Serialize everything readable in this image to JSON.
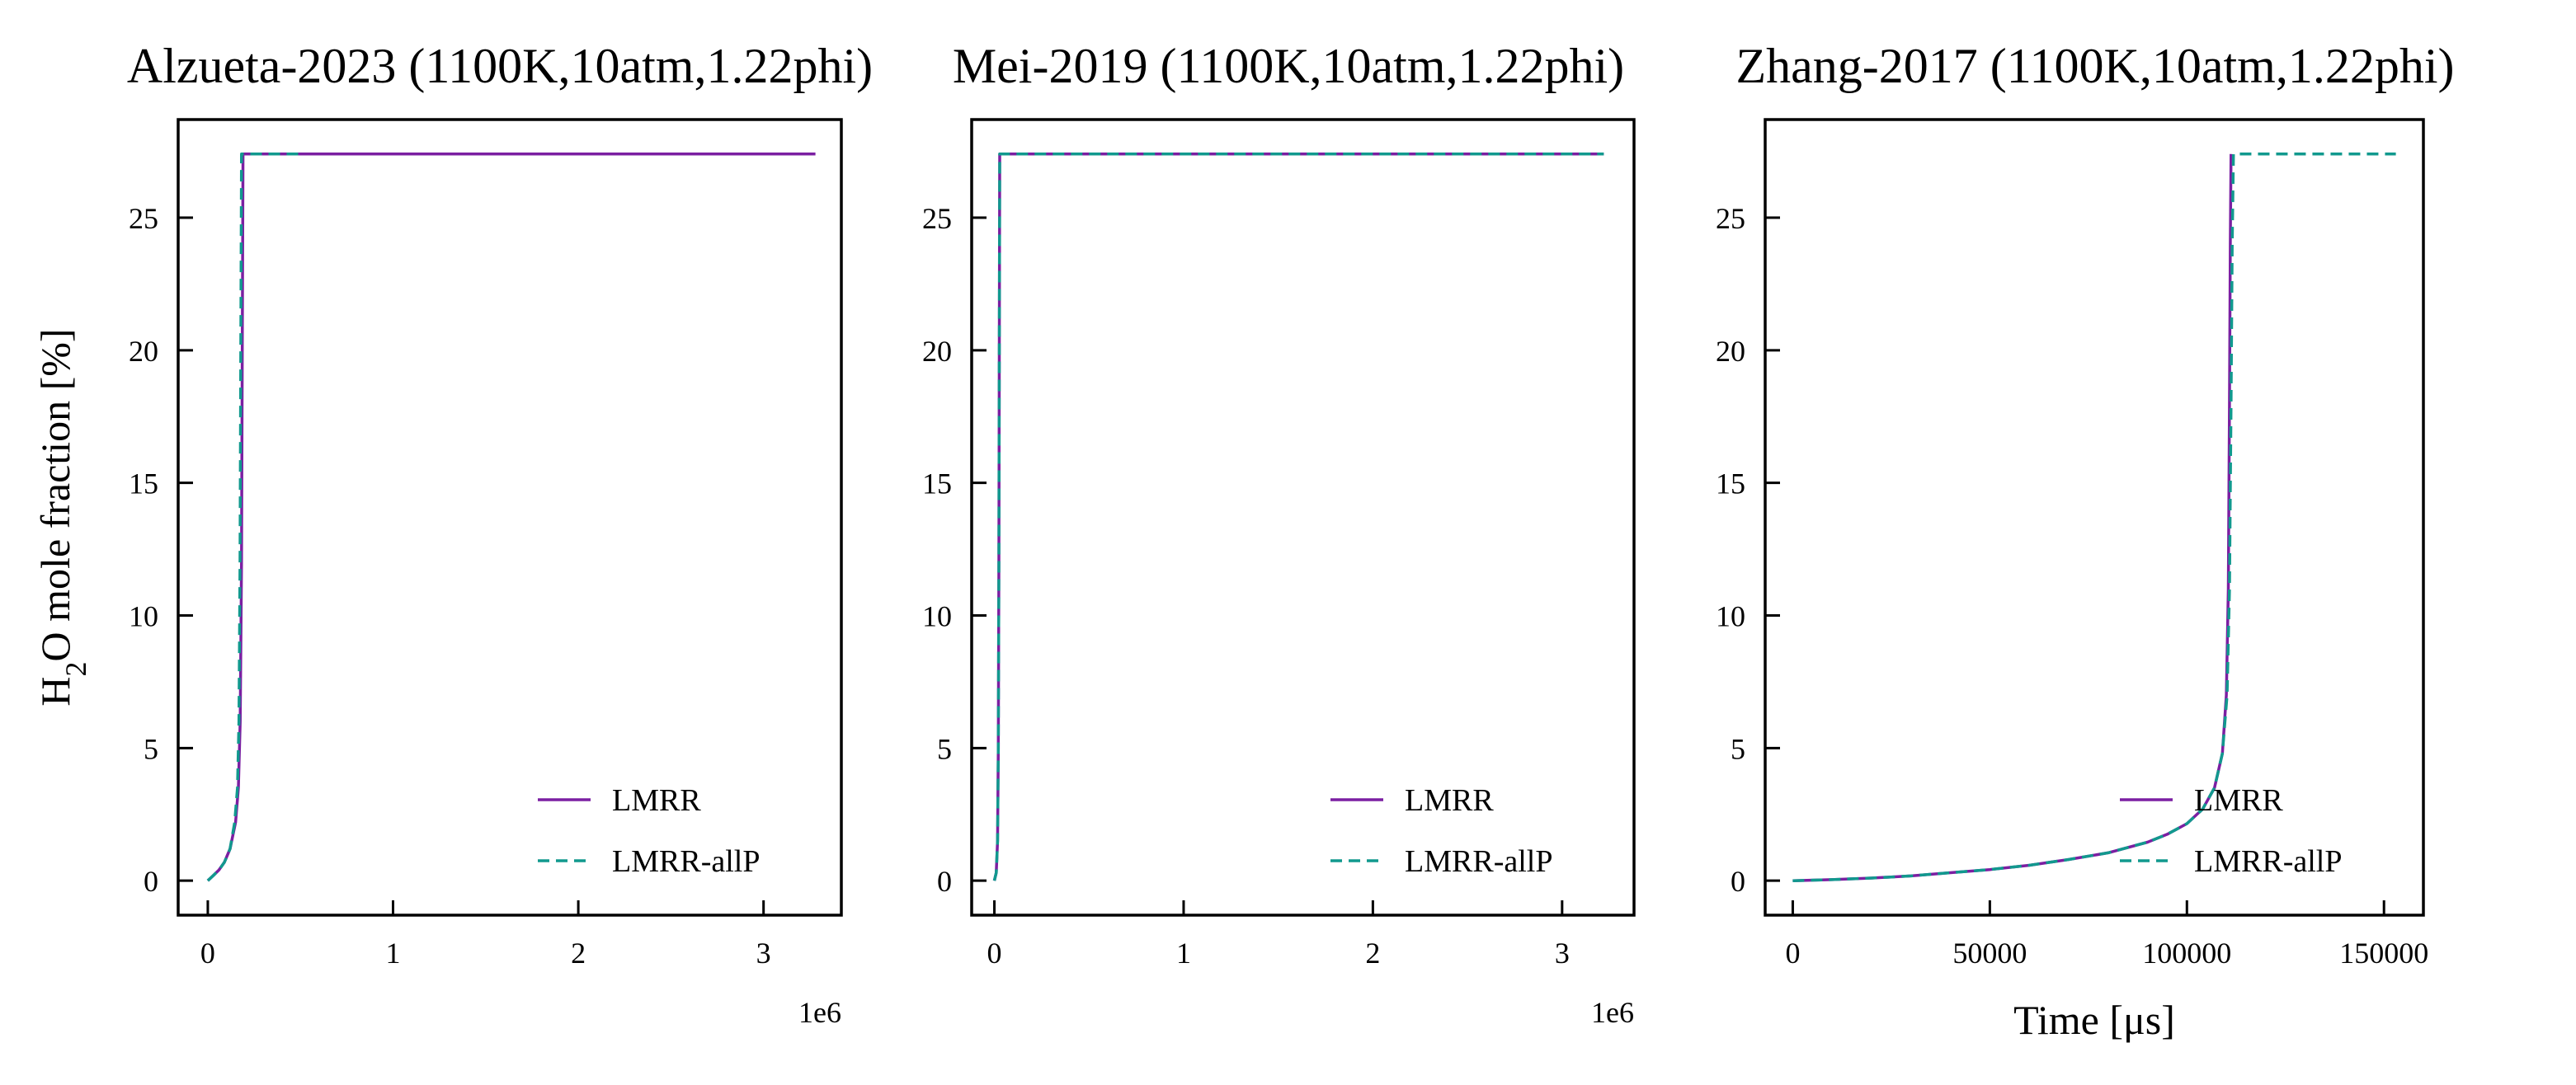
{
  "chart_data": [
    {
      "type": "line",
      "title": "Alzueta-2023 (1100K,10atm,1.22phi)",
      "xlabel": "",
      "ylabel_main": "H",
      "ylabel_sub": "2",
      "ylabel_rest": "O mole fraction [%]",
      "x_offset_label": "1e6",
      "xlim": [
        -160000,
        3420000
      ],
      "ylim": [
        -1.3,
        28.7
      ],
      "xticks": [
        0,
        1000000,
        2000000,
        3000000
      ],
      "xtick_labels": [
        "0",
        "1",
        "2",
        "3"
      ],
      "yticks": [
        0,
        5,
        10,
        15,
        20,
        25
      ],
      "ytick_labels": [
        "0",
        "5",
        "10",
        "15",
        "20",
        "25"
      ],
      "legend_position": "lower-right",
      "series": [
        {
          "name": "LMRR",
          "style": "solid",
          "x": [
            0,
            30000,
            60000,
            90000,
            120000,
            150000,
            165000,
            175000,
            182000,
            186000,
            190000,
            3280000
          ],
          "y": [
            0,
            0.2,
            0.4,
            0.7,
            1.2,
            2.2,
            3.5,
            6,
            12,
            20,
            27.4,
            27.4
          ]
        },
        {
          "name": "LMRR-allP",
          "style": "dashed",
          "x": [
            0,
            30000,
            60000,
            90000,
            120000,
            145000,
            160000,
            168000,
            174000,
            178000,
            182000,
            500000
          ],
          "y": [
            0,
            0.2,
            0.4,
            0.7,
            1.2,
            2.2,
            3.5,
            6,
            12,
            20,
            27.4,
            27.4
          ]
        }
      ]
    },
    {
      "type": "line",
      "title": "Mei-2019 (1100K,10atm,1.22phi)",
      "xlabel": "",
      "x_offset_label": "1e6",
      "xlim": [
        -120000,
        3380000
      ],
      "ylim": [
        -1.3,
        28.7
      ],
      "xticks": [
        0,
        1000000,
        2000000,
        3000000
      ],
      "xtick_labels": [
        "0",
        "1",
        "2",
        "3"
      ],
      "yticks": [
        0,
        5,
        10,
        15,
        20,
        25
      ],
      "ytick_labels": [
        "0",
        "5",
        "10",
        "15",
        "20",
        "25"
      ],
      "legend_position": "lower-right",
      "series": [
        {
          "name": "LMRR",
          "style": "solid",
          "x": [
            0,
            10000,
            17000,
            21000,
            24000,
            26000,
            28000,
            3220000
          ],
          "y": [
            0,
            0.3,
            1.5,
            5,
            12,
            20,
            27.4,
            27.4
          ]
        },
        {
          "name": "LMRR-allP",
          "style": "dashed",
          "x": [
            0,
            10000,
            17000,
            21000,
            24000,
            26000,
            28000,
            3220000
          ],
          "y": [
            0,
            0.3,
            1.5,
            5,
            12,
            20,
            27.4,
            27.4
          ]
        }
      ]
    },
    {
      "type": "line",
      "title": "Zhang-2017 (1100K,10atm,1.22phi)",
      "xlabel": "Time [μs]",
      "xlim": [
        -7000,
        160000
      ],
      "ylim": [
        -1.3,
        28.7
      ],
      "xticks": [
        0,
        50000,
        100000,
        150000
      ],
      "xtick_labels": [
        "0",
        "50000",
        "100000",
        "150000"
      ],
      "yticks": [
        0,
        5,
        10,
        15,
        20,
        25
      ],
      "ytick_labels": [
        "0",
        "5",
        "10",
        "15",
        "20",
        "25"
      ],
      "legend_position": "lower-right",
      "series": [
        {
          "name": "LMRR",
          "style": "solid",
          "x": [
            0,
            10000,
            20000,
            30000,
            40000,
            50000,
            60000,
            70000,
            80000,
            90000,
            95000,
            100000,
            104000,
            107000,
            109000,
            110000,
            110500,
            110800,
            111000,
            111200
          ],
          "y": [
            0,
            0.04,
            0.1,
            0.18,
            0.3,
            0.42,
            0.58,
            0.8,
            1.05,
            1.45,
            1.75,
            2.15,
            2.7,
            3.5,
            4.8,
            7,
            11,
            18,
            24,
            27.4
          ]
        },
        {
          "name": "LMRR-allP",
          "style": "dashed",
          "x": [
            0,
            10000,
            20000,
            30000,
            40000,
            50000,
            60000,
            70000,
            80000,
            90000,
            95000,
            100000,
            104000,
            107000,
            109000,
            110200,
            110800,
            111200,
            111500,
            111800,
            153000
          ],
          "y": [
            0,
            0.04,
            0.1,
            0.18,
            0.3,
            0.42,
            0.58,
            0.8,
            1.05,
            1.45,
            1.75,
            2.15,
            2.7,
            3.5,
            4.8,
            7,
            11,
            18,
            24,
            27.4,
            27.4
          ]
        }
      ]
    }
  ],
  "colors": {
    "LMRR": "#7b1fa2",
    "LMRR-allP": "#11998e",
    "axis": "#000000"
  }
}
